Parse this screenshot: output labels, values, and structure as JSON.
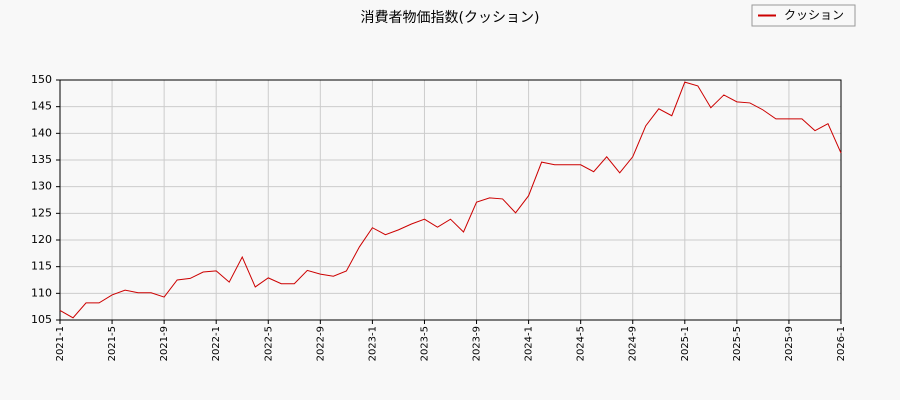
{
  "chart_data": {
    "type": "line",
    "title": "消費者物価指数(クッション)",
    "categories": [
      "2021-1",
      null,
      null,
      null,
      "2021-5",
      null,
      null,
      null,
      "2021-9",
      null,
      null,
      null,
      "2022-1",
      null,
      null,
      null,
      "2022-5",
      null,
      null,
      null,
      "2022-9",
      null,
      null,
      null,
      "2023-1",
      null,
      null,
      null,
      "2023-5",
      null,
      null,
      null,
      "2023-9",
      null,
      null,
      null,
      "2024-1",
      null,
      null,
      null,
      "2024-5",
      null,
      null,
      null,
      "2024-9",
      null,
      null,
      null,
      "2025-1",
      null,
      null,
      null,
      "2025-5",
      null,
      null,
      null,
      "2025-9",
      null,
      null,
      null,
      "2026-1"
    ],
    "series": [
      {
        "name": "クッション",
        "color": "#cc0000",
        "values": [
          106.8,
          105.4,
          108.2,
          108.2,
          109.7,
          110.6,
          110.1,
          110.1,
          109.3,
          112.5,
          112.8,
          114.0,
          114.2,
          112.1,
          116.8,
          111.2,
          112.9,
          111.8,
          111.8,
          114.3,
          113.6,
          113.2,
          114.2,
          118.7,
          122.3,
          121.0,
          121.9,
          123.0,
          123.9,
          122.4,
          123.9,
          121.5,
          127.1,
          127.9,
          127.7,
          125.1,
          128.3,
          134.6,
          134.1,
          134.1,
          134.1,
          132.8,
          135.6,
          132.6,
          135.6,
          141.4,
          144.6,
          143.3,
          149.6,
          148.9,
          144.8,
          147.2,
          145.9,
          145.7,
          144.4,
          142.7,
          142.7,
          142.7,
          140.5,
          141.8,
          136.3
        ]
      }
    ],
    "ylim": [
      105,
      150
    ],
    "yticks": [
      105,
      110,
      115,
      120,
      125,
      130,
      135,
      140,
      145,
      150
    ],
    "grid": true,
    "legend": "top-right"
  }
}
